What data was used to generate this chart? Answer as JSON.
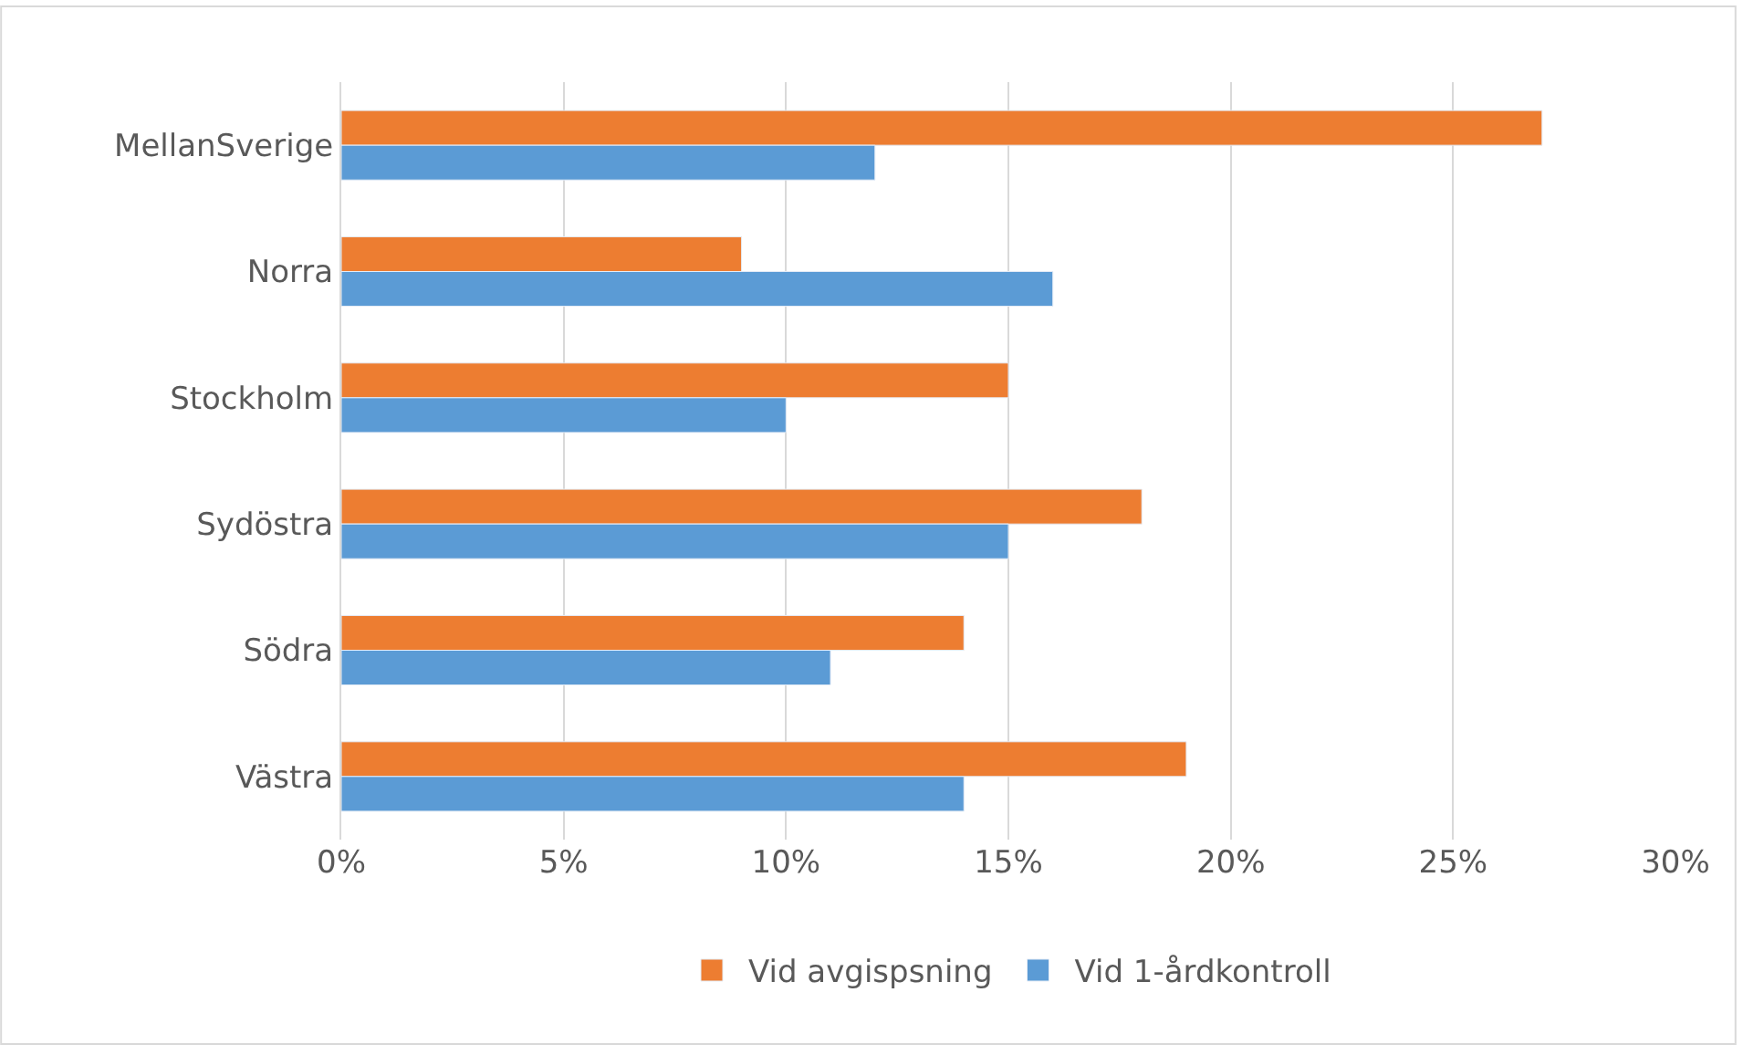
{
  "chart_data": {
    "type": "bar",
    "orientation": "horizontal",
    "categories": [
      "MellanSverige",
      "Norra",
      "Stockholm",
      "Sydöstra",
      "Södra",
      "Västra"
    ],
    "series": [
      {
        "name": "Vid avgispsning",
        "color": "#ed7d31",
        "values": [
          27,
          9,
          15,
          18,
          14,
          19
        ]
      },
      {
        "name": "Vid 1-årdkontroll",
        "color": "#5b9bd5",
        "values": [
          12,
          16,
          10,
          15,
          11,
          14
        ]
      }
    ],
    "xlim": [
      0,
      30
    ],
    "xticks": [
      {
        "value": 0,
        "label": "0%"
      },
      {
        "value": 5,
        "label": "5%"
      },
      {
        "value": 10,
        "label": "10%"
      },
      {
        "value": 15,
        "label": "15%"
      },
      {
        "value": 20,
        "label": "20%"
      },
      {
        "value": 25,
        "label": "25%"
      },
      {
        "value": 30,
        "label": "30%"
      }
    ],
    "grid": "x",
    "legend": "bottom"
  }
}
